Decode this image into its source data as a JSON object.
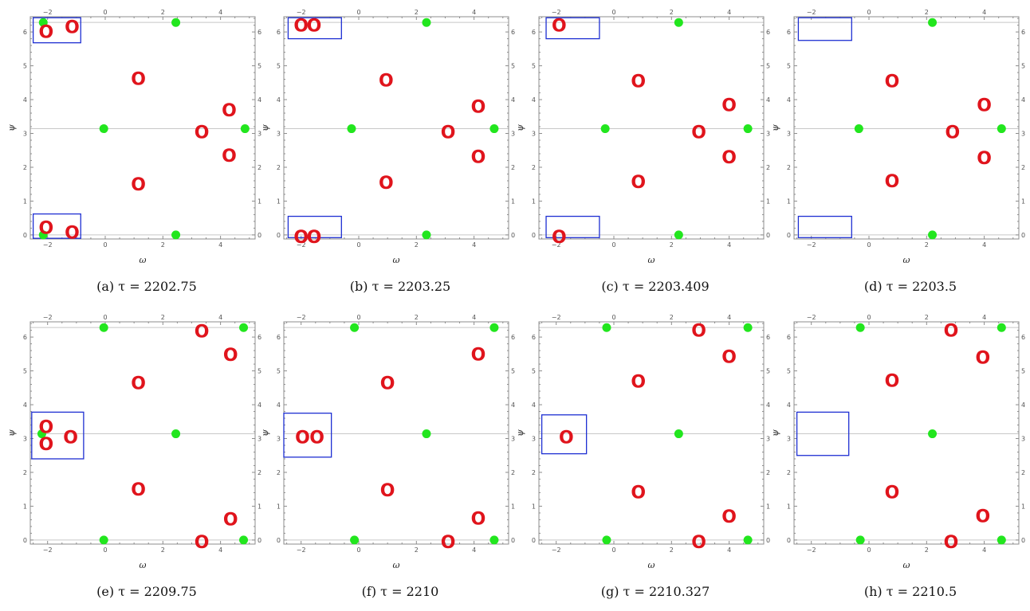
{
  "chart_data": [
    {
      "type": "scatter",
      "caption": "(a) τ = 2202.75",
      "xlabel": "ω",
      "ylabel": "ψ",
      "xlim": [
        -2.6,
        5.2
      ],
      "ylim": [
        -0.12,
        6.45
      ],
      "ref_lines_y": [
        0,
        3.1416,
        6.2832
      ],
      "green": [
        {
          "x": -2.15,
          "y": 6.28
        },
        {
          "x": 2.45,
          "y": 6.28
        },
        {
          "x": -0.05,
          "y": 3.14
        },
        {
          "x": 4.85,
          "y": 3.14
        },
        {
          "x": -2.15,
          "y": 0.0
        },
        {
          "x": 2.45,
          "y": 0.0
        }
      ],
      "red": [
        {
          "x": -2.05,
          "y": 6.02
        },
        {
          "x": -1.15,
          "y": 6.15
        },
        {
          "x": 1.15,
          "y": 4.62
        },
        {
          "x": 4.3,
          "y": 3.7
        },
        {
          "x": 3.35,
          "y": 3.05
        },
        {
          "x": 4.3,
          "y": 2.35
        },
        {
          "x": 1.15,
          "y": 1.5
        },
        {
          "x": -2.05,
          "y": 0.22
        },
        {
          "x": -1.15,
          "y": 0.08
        }
      ],
      "boxes": [
        {
          "x0": -2.5,
          "x1": -0.85,
          "y0": 5.68,
          "y1": 6.42
        },
        {
          "x0": -2.5,
          "x1": -0.85,
          "y0": -0.1,
          "y1": 0.62
        }
      ]
    },
    {
      "type": "scatter",
      "caption": "(b) τ = 2203.25",
      "xlabel": "ω",
      "ylabel": "ψ",
      "xlim": [
        -2.6,
        5.2
      ],
      "ylim": [
        -0.12,
        6.45
      ],
      "ref_lines_y": [
        0,
        3.1416,
        6.2832
      ],
      "green": [
        {
          "x": 2.35,
          "y": 6.28
        },
        {
          "x": -0.25,
          "y": 3.14
        },
        {
          "x": 4.7,
          "y": 3.14
        },
        {
          "x": 2.35,
          "y": 0.0
        }
      ],
      "red": [
        {
          "x": -2.0,
          "y": 6.2
        },
        {
          "x": -1.55,
          "y": 6.2
        },
        {
          "x": 0.95,
          "y": 4.58
        },
        {
          "x": 4.15,
          "y": 3.8
        },
        {
          "x": 3.1,
          "y": 3.05
        },
        {
          "x": 4.15,
          "y": 2.32
        },
        {
          "x": 0.95,
          "y": 1.55
        },
        {
          "x": -2.0,
          "y": -0.05
        },
        {
          "x": -1.55,
          "y": -0.05
        }
      ],
      "boxes": [
        {
          "x0": -2.45,
          "x1": -0.6,
          "y0": 5.8,
          "y1": 6.42
        },
        {
          "x0": -2.45,
          "x1": -0.6,
          "y0": -0.08,
          "y1": 0.55
        }
      ]
    },
    {
      "type": "scatter",
      "caption": "(c) τ = 2203.409",
      "xlabel": "ω",
      "ylabel": "ψ",
      "xlim": [
        -2.6,
        5.2
      ],
      "ylim": [
        -0.12,
        6.45
      ],
      "ref_lines_y": [
        0,
        3.1416,
        6.2832
      ],
      "green": [
        {
          "x": 2.25,
          "y": 6.28
        },
        {
          "x": -0.3,
          "y": 3.14
        },
        {
          "x": 4.65,
          "y": 3.14
        },
        {
          "x": 2.25,
          "y": 0.0
        }
      ],
      "red": [
        {
          "x": -1.9,
          "y": 6.2
        },
        {
          "x": 0.85,
          "y": 4.55
        },
        {
          "x": 4.0,
          "y": 3.85
        },
        {
          "x": 2.95,
          "y": 3.05
        },
        {
          "x": 4.0,
          "y": 2.3
        },
        {
          "x": 0.85,
          "y": 1.58
        },
        {
          "x": -1.9,
          "y": -0.05
        }
      ],
      "boxes": [
        {
          "x0": -2.35,
          "x1": -0.5,
          "y0": 5.8,
          "y1": 6.42
        },
        {
          "x0": -2.35,
          "x1": -0.5,
          "y0": -0.08,
          "y1": 0.55
        }
      ]
    },
    {
      "type": "scatter",
      "caption": "(d) τ = 2203.5",
      "xlabel": "ω",
      "ylabel": "ψ",
      "xlim": [
        -2.6,
        5.2
      ],
      "ylim": [
        -0.12,
        6.45
      ],
      "ref_lines_y": [
        0,
        3.1416,
        6.2832
      ],
      "green": [
        {
          "x": 2.2,
          "y": 6.28
        },
        {
          "x": -0.35,
          "y": 3.14
        },
        {
          "x": 4.6,
          "y": 3.14
        },
        {
          "x": 2.2,
          "y": 0.0
        }
      ],
      "red": [
        {
          "x": 0.8,
          "y": 4.55
        },
        {
          "x": 4.0,
          "y": 3.85
        },
        {
          "x": 2.9,
          "y": 3.05
        },
        {
          "x": 4.0,
          "y": 2.28
        },
        {
          "x": 0.8,
          "y": 1.6
        }
      ],
      "boxes": [
        {
          "x0": -2.45,
          "x1": -0.6,
          "y0": 5.75,
          "y1": 6.42
        },
        {
          "x0": -2.45,
          "x1": -0.6,
          "y0": -0.08,
          "y1": 0.55
        }
      ]
    },
    {
      "type": "scatter",
      "caption": "(e) τ = 2209.75",
      "xlabel": "ω",
      "ylabel": "ψ",
      "xlim": [
        -2.6,
        5.2
      ],
      "ylim": [
        -0.12,
        6.45
      ],
      "ref_lines_y": [
        0,
        3.1416,
        6.2832
      ],
      "green": [
        {
          "x": -0.05,
          "y": 6.28
        },
        {
          "x": 4.8,
          "y": 6.28
        },
        {
          "x": -2.2,
          "y": 3.14
        },
        {
          "x": 2.45,
          "y": 3.14
        },
        {
          "x": -0.05,
          "y": 0.0
        },
        {
          "x": 4.8,
          "y": 0.0
        }
      ],
      "red": [
        {
          "x": 3.35,
          "y": 6.18
        },
        {
          "x": 4.35,
          "y": 5.48
        },
        {
          "x": 1.15,
          "y": 4.65
        },
        {
          "x": -2.05,
          "y": 3.35
        },
        {
          "x": -1.2,
          "y": 3.05
        },
        {
          "x": -2.05,
          "y": 2.85
        },
        {
          "x": 1.15,
          "y": 1.5
        },
        {
          "x": 4.35,
          "y": 0.62
        },
        {
          "x": 3.35,
          "y": -0.05
        }
      ],
      "boxes": [
        {
          "x0": -2.55,
          "x1": -0.75,
          "y0": 2.4,
          "y1": 3.78
        }
      ]
    },
    {
      "type": "scatter",
      "caption": "(f) τ = 2210",
      "xlabel": "ω",
      "ylabel": "ψ",
      "xlim": [
        -2.6,
        5.2
      ],
      "ylim": [
        -0.12,
        6.45
      ],
      "ref_lines_y": [
        0,
        3.1416,
        6.2832
      ],
      "green": [
        {
          "x": -0.15,
          "y": 6.28
        },
        {
          "x": 4.7,
          "y": 6.28
        },
        {
          "x": 2.35,
          "y": 3.14
        },
        {
          "x": -0.15,
          "y": 0.0
        },
        {
          "x": 4.7,
          "y": 0.0
        }
      ],
      "red": [
        {
          "x": 4.15,
          "y": 5.5
        },
        {
          "x": 1.0,
          "y": 4.65
        },
        {
          "x": -1.95,
          "y": 3.05
        },
        {
          "x": -1.45,
          "y": 3.05
        },
        {
          "x": 1.0,
          "y": 1.48
        },
        {
          "x": 4.15,
          "y": 0.65
        },
        {
          "x": 3.1,
          "y": -0.05
        }
      ],
      "boxes": [
        {
          "x0": -2.6,
          "x1": -0.95,
          "y0": 2.45,
          "y1": 3.75
        }
      ]
    },
    {
      "type": "scatter",
      "caption": "(g) τ = 2210.327",
      "xlabel": "ω",
      "ylabel": "ψ",
      "xlim": [
        -2.6,
        5.2
      ],
      "ylim": [
        -0.12,
        6.45
      ],
      "ref_lines_y": [
        0,
        3.1416,
        6.2832
      ],
      "green": [
        {
          "x": -0.25,
          "y": 6.28
        },
        {
          "x": 4.65,
          "y": 6.28
        },
        {
          "x": 2.25,
          "y": 3.14
        },
        {
          "x": -0.25,
          "y": 0.0
        },
        {
          "x": 4.65,
          "y": 0.0
        }
      ],
      "red": [
        {
          "x": 2.95,
          "y": 6.2
        },
        {
          "x": 4.0,
          "y": 5.42
        },
        {
          "x": 0.85,
          "y": 4.7
        },
        {
          "x": -1.65,
          "y": 3.05
        },
        {
          "x": 0.85,
          "y": 1.42
        },
        {
          "x": 4.0,
          "y": 0.7
        },
        {
          "x": 2.95,
          "y": -0.05
        }
      ],
      "boxes": [
        {
          "x0": -2.5,
          "x1": -0.95,
          "y0": 2.55,
          "y1": 3.7
        }
      ]
    },
    {
      "type": "scatter",
      "caption": "(h) τ = 2210.5",
      "xlabel": "ω",
      "ylabel": "ψ",
      "xlim": [
        -2.6,
        5.2
      ],
      "ylim": [
        -0.12,
        6.45
      ],
      "ref_lines_y": [
        0,
        3.1416,
        6.2832
      ],
      "green": [
        {
          "x": -0.3,
          "y": 6.28
        },
        {
          "x": 4.6,
          "y": 6.28
        },
        {
          "x": 2.2,
          "y": 3.14
        },
        {
          "x": -0.3,
          "y": 0.0
        },
        {
          "x": 4.6,
          "y": 0.0
        }
      ],
      "red": [
        {
          "x": 2.85,
          "y": 6.2
        },
        {
          "x": 3.95,
          "y": 5.4
        },
        {
          "x": 0.8,
          "y": 4.72
        },
        {
          "x": 0.8,
          "y": 1.42
        },
        {
          "x": 3.95,
          "y": 0.72
        },
        {
          "x": 2.85,
          "y": -0.05
        }
      ],
      "boxes": [
        {
          "x0": -2.5,
          "x1": -0.7,
          "y0": 2.5,
          "y1": 3.78
        }
      ]
    }
  ],
  "style": {
    "green_color": "#22e61e",
    "red_color": "#e0141c",
    "box_color": "#1e2fd2",
    "red_marker_glyph": "O"
  }
}
